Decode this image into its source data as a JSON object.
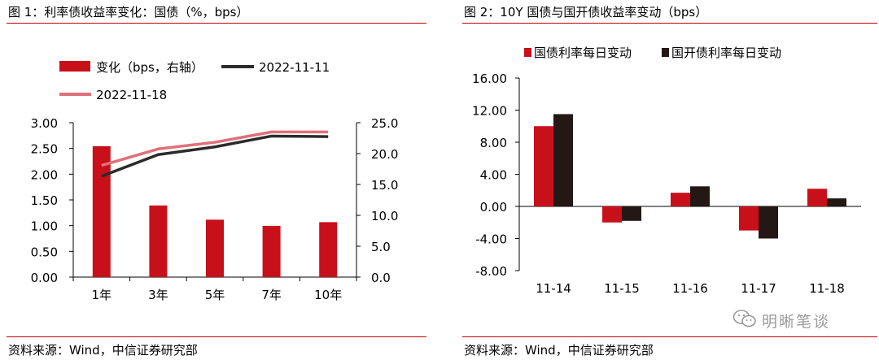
{
  "colors": {
    "red": "#c8101a",
    "dark": "#231815",
    "pink": "#e0707a",
    "line_dark": "#2b2b2b",
    "rule": "#c00000"
  },
  "left": {
    "title": "图 1：利率债收益率变化：国债（%，bps）",
    "source": "资料来源：Wind，中信证券研究部"
  },
  "right": {
    "title": "图 2：10Y 国债与国开债收益率变动（bps）",
    "source": "资料来源：Wind，中信证券研究部"
  },
  "watermark": {
    "text": "明晰笔谈",
    "icon": "wechat-icon"
  },
  "chart_data": [
    {
      "type": "bar",
      "categories": [
        "1年",
        "3年",
        "5年",
        "7年",
        "10年"
      ],
      "series": [
        {
          "name": "变化（bps，右轴）",
          "type": "bar",
          "axis": "right",
          "values": [
            21.2,
            11.6,
            9.3,
            8.3,
            8.9
          ]
        },
        {
          "name": "2022-11-11",
          "type": "line",
          "axis": "left",
          "values": [
            1.96,
            2.38,
            2.53,
            2.74,
            2.73
          ]
        },
        {
          "name": "2022-11-18",
          "type": "line",
          "axis": "left",
          "values": [
            2.17,
            2.49,
            2.62,
            2.82,
            2.82
          ]
        }
      ],
      "ylim_left": [
        0,
        3
      ],
      "yticks_left": [
        "0.00",
        "0.50",
        "1.00",
        "1.50",
        "2.00",
        "2.50",
        "3.00"
      ],
      "ylim_right": [
        0,
        25
      ],
      "yticks_right": [
        "0.0",
        "5.0",
        "10.0",
        "15.0",
        "20.0",
        "25.0"
      ],
      "legend": "top",
      "grid": false
    },
    {
      "type": "bar",
      "categories": [
        "11-14",
        "11-15",
        "11-16",
        "11-17",
        "11-18"
      ],
      "series": [
        {
          "name": "国债利率每日变动",
          "values": [
            10.0,
            -2.0,
            1.7,
            -3.0,
            2.2
          ]
        },
        {
          "name": "国开债利率每日变动",
          "values": [
            11.5,
            -1.8,
            2.5,
            -4.0,
            1.0
          ]
        }
      ],
      "ylim": [
        -8,
        16
      ],
      "yticks": [
        "-8.00",
        "-4.00",
        "0.00",
        "4.00",
        "8.00",
        "12.00",
        "16.00"
      ],
      "legend": "top",
      "grid": false
    }
  ]
}
